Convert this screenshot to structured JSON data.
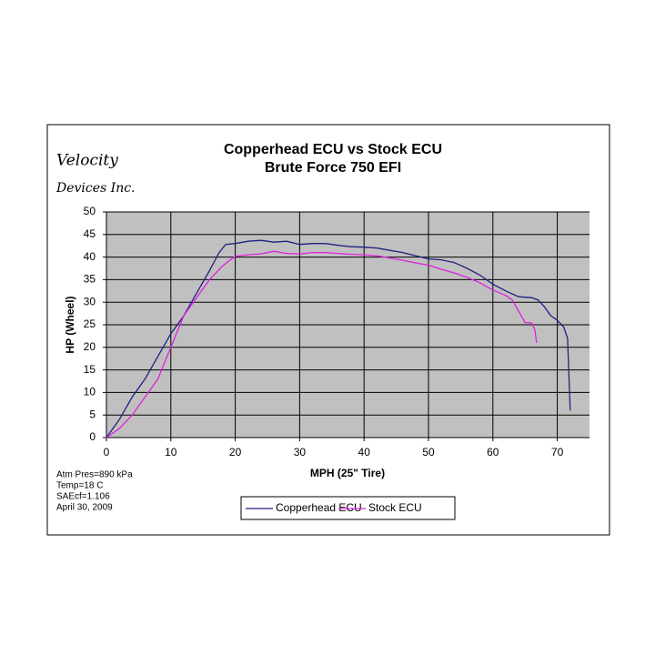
{
  "chart_data": {
    "type": "line",
    "title": "Copperhead ECU vs Stock ECU",
    "subtitle": "Brute Force 750 EFI",
    "logo": [
      "Velocity",
      "Devices Inc."
    ],
    "notes": [
      "Atm Pres=890 kPa",
      "Temp=18 C",
      "SAEcf=1.106",
      "April 30, 2009"
    ],
    "x_label": "MPH (25\" Tire)",
    "y_label": "HP (Wheel)",
    "xlim": [
      0,
      75
    ],
    "xticks": [
      0,
      10,
      20,
      30,
      40,
      50,
      60,
      70
    ],
    "ylim": [
      0,
      50
    ],
    "yticks": [
      0,
      5,
      10,
      15,
      20,
      25,
      30,
      35,
      40,
      45,
      50
    ],
    "grid": true,
    "legend": "bottom",
    "series": [
      {
        "name": "Copperhead ECU",
        "color": "#202080",
        "x": [
          0,
          2,
          4,
          6,
          8,
          10,
          12,
          14,
          16,
          17.5,
          18.5,
          20,
          22,
          24,
          26,
          28,
          30,
          32,
          34,
          36,
          38,
          40,
          42,
          44,
          46,
          48,
          50,
          52,
          54,
          56,
          58,
          60,
          62,
          64,
          66,
          67,
          68,
          69,
          70,
          71,
          71.6,
          72
        ],
        "values": [
          0,
          4,
          9,
          13,
          18,
          23,
          27,
          32,
          37,
          41,
          42.8,
          43,
          43.5,
          43.7,
          43.3,
          43.5,
          42.8,
          43,
          43,
          42.6,
          42.3,
          42.2,
          42,
          41.5,
          41,
          40.3,
          39.6,
          39.4,
          38.8,
          37.5,
          36,
          34,
          32.5,
          31.2,
          31,
          30.5,
          29,
          27,
          26,
          24.5,
          22,
          6
        ]
      },
      {
        "name": "Stock ECU",
        "color": "#e020e0",
        "x": [
          0,
          2,
          4,
          6,
          8,
          10,
          12,
          14,
          16,
          18,
          20,
          22,
          24,
          26,
          28,
          30,
          32,
          34,
          36,
          38,
          40,
          42,
          44,
          46,
          48,
          50,
          52,
          54,
          56,
          58,
          60,
          62,
          63,
          64,
          65,
          66,
          66.5,
          66.8
        ],
        "values": [
          0,
          2,
          5,
          9,
          13,
          20,
          27,
          31,
          35,
          38,
          40.2,
          40.5,
          40.7,
          41.3,
          40.8,
          40.7,
          41,
          41,
          40.8,
          40.6,
          40.5,
          40.3,
          39.8,
          39.3,
          38.7,
          38.2,
          37.3,
          36.5,
          35.5,
          34.3,
          32.7,
          31.5,
          30.5,
          28,
          25.5,
          25.4,
          24,
          21
        ]
      }
    ]
  }
}
